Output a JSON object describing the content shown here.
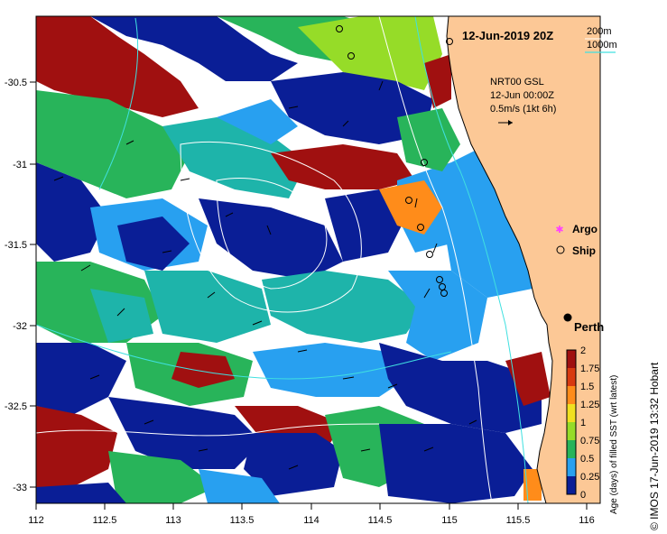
{
  "title": "12-Jun-2019 20Z",
  "depth_legend": {
    "contour_a": "200m",
    "contour_b": "1000m"
  },
  "product": {
    "line1": "NRT00 GSL",
    "line2": "12-Jun 00:00Z",
    "line3": "0.5m/s (1kt 6h)"
  },
  "legend": {
    "argo": "Argo",
    "ship": "Ship"
  },
  "city": "Perth",
  "colorbar": {
    "title": "Age (days) of filled SST (wrt latest)",
    "ticks": [
      "2",
      "1.75",
      "1.5",
      "1.25",
      "1",
      "0.75",
      "0.5",
      "0.25",
      "0"
    ],
    "colors": [
      "#a01010",
      "#d83a10",
      "#ff8c1a",
      "#f0e020",
      "#96dc28",
      "#28b45a",
      "#1eb4aa",
      "#28a0f0",
      "#0a1e96"
    ]
  },
  "x_ticks": [
    "112",
    "112.5",
    "113",
    "113.5",
    "114",
    "114.5",
    "115",
    "115.5",
    "116"
  ],
  "y_ticks": [
    "-30.5",
    "-31",
    "-31.5",
    "-32",
    "-32.5",
    "-33"
  ],
  "credit": "© IMOS 17-Jun-2019 13:32 Hobart",
  "colors": {
    "land": "#fcc896",
    "ocean_white": "#ffffff",
    "cyan_contour": "#40e0e0",
    "argo": "#ff40ff"
  }
}
